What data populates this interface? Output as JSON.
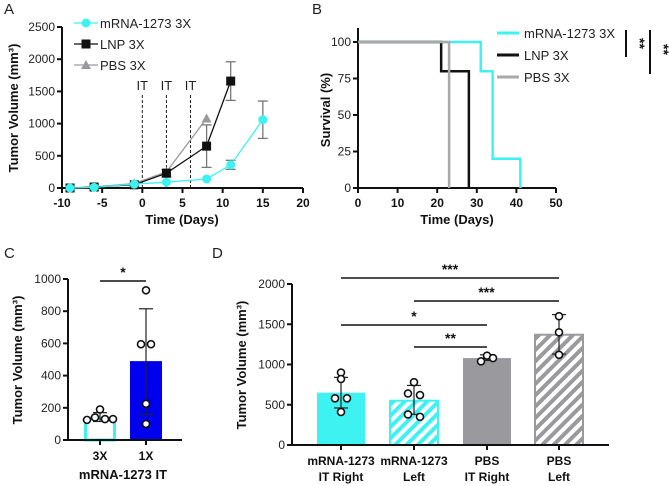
{
  "panels": [
    "A",
    "B",
    "C",
    "D"
  ],
  "colors": {
    "cyan": "#3ef2f2",
    "black": "#111111",
    "gray": "#9a9a9e",
    "blue": "#0000ee"
  },
  "chart_data": [
    {
      "panel": "A",
      "type": "line",
      "xlabel": "Time (Days)",
      "ylabel": "Tumor Volume (mm³)",
      "xlim": [
        -10,
        20
      ],
      "ylim": [
        0,
        2500
      ],
      "xticks": [
        -10,
        -5,
        0,
        5,
        10,
        15,
        20
      ],
      "yticks": [
        0,
        500,
        1000,
        1500,
        2000,
        2500
      ],
      "annotations": [
        {
          "label": "IT",
          "x": 0
        },
        {
          "label": "IT",
          "x": 3
        },
        {
          "label": "IT",
          "x": 6
        }
      ],
      "legend": "top-left",
      "series": [
        {
          "name": "PBS 3X",
          "color": "#9a9a9e",
          "marker": "triangle",
          "x": [
            -9,
            -6,
            -1,
            3,
            8
          ],
          "y": [
            0,
            15,
            70,
            250,
            1080
          ],
          "err": [
            null,
            null,
            null,
            null,
            null
          ]
        },
        {
          "name": "LNP 3X",
          "color": "#111111",
          "marker": "square",
          "x": [
            -9,
            -6,
            -1,
            3,
            8,
            11
          ],
          "y": [
            0,
            15,
            50,
            230,
            650,
            1660
          ],
          "err": [
            null,
            null,
            null,
            [
              170,
              290
            ],
            [
              320,
              980
            ],
            [
              1360,
              1960
            ]
          ]
        },
        {
          "name": "mRNA-1273 3X",
          "color": "#3ef2f2",
          "marker": "circle",
          "x": [
            -9,
            -6,
            -1,
            3,
            8,
            11,
            15
          ],
          "y": [
            0,
            10,
            60,
            90,
            140,
            360,
            1060
          ],
          "err": [
            null,
            null,
            null,
            null,
            null,
            [
              290,
              430
            ],
            [
              770,
              1350
            ]
          ]
        }
      ]
    },
    {
      "panel": "B",
      "type": "line",
      "xlabel": "Time (Days)",
      "ylabel": "Survival (%)",
      "xlim": [
        0,
        50
      ],
      "ylim": [
        0,
        100
      ],
      "xticks": [
        0,
        10,
        20,
        30,
        40,
        50
      ],
      "yticks": [
        0,
        25,
        50,
        75,
        100
      ],
      "legend": "top-right",
      "series": [
        {
          "name": "mRNA-1273 3X",
          "color": "#3ef2f2",
          "x": [
            0,
            31,
            34,
            41
          ],
          "y": [
            100,
            80,
            20,
            0
          ]
        },
        {
          "name": "LNP 3X",
          "color": "#111111",
          "x": [
            0,
            21,
            28
          ],
          "y": [
            100,
            80,
            0
          ]
        },
        {
          "name": "PBS 3X",
          "color": "#a9a9a9",
          "x": [
            0,
            23
          ],
          "y": [
            100,
            0
          ]
        }
      ],
      "significance": [
        {
          "groups": [
            "mRNA-1273 3X",
            "LNP 3X"
          ],
          "label": "**"
        },
        {
          "groups": [
            "mRNA-1273 3X",
            "PBS 3X"
          ],
          "label": "**"
        }
      ]
    },
    {
      "panel": "C",
      "type": "bar",
      "xlabel": "mRNA-1273 IT",
      "ylabel": "Tumor Volume (mm³)",
      "ylim": [
        0,
        1000
      ],
      "yticks": [
        0,
        200,
        400,
        600,
        800,
        1000
      ],
      "categories": [
        "3X",
        "1X"
      ],
      "values": [
        135,
        490
      ],
      "err": [
        [
          115,
          170
        ],
        [
          160,
          815
        ]
      ],
      "points": [
        [
          125,
          140,
          190,
          130,
          130
        ],
        [
          930,
          595,
          595,
          225,
          100
        ]
      ],
      "fills": [
        "outline-cyan",
        "blue"
      ],
      "significance": [
        {
          "groups": [
            "3X",
            "1X"
          ],
          "label": "*"
        }
      ]
    },
    {
      "panel": "D",
      "type": "bar",
      "ylabel": "Tumor Volume (mm³)",
      "ylim": [
        0,
        2000
      ],
      "yticks": [
        0,
        500,
        1000,
        1500,
        2000
      ],
      "categories": [
        [
          "mRNA-1273",
          "IT Right"
        ],
        [
          "mRNA-1273",
          "Left"
        ],
        [
          "PBS",
          "IT Right"
        ],
        [
          "PBS",
          "Left"
        ]
      ],
      "values": [
        650,
        550,
        1080,
        1370
      ],
      "err": [
        [
          460,
          840
        ],
        [
          380,
          740
        ],
        [
          1050,
          1120
        ],
        [
          1130,
          1620
        ]
      ],
      "points": [
        [
          900,
          820,
          580,
          580,
          410
        ],
        [
          780,
          640,
          620,
          380,
          350
        ],
        [
          1040,
          1110,
          1080
        ],
        [
          1600,
          1400,
          1120
        ]
      ],
      "fills": [
        "cyan",
        "cyan-hatched",
        "gray",
        "gray-hatched"
      ],
      "significance": [
        {
          "groups": [
            0,
            3
          ],
          "label": "***"
        },
        {
          "groups": [
            1,
            3
          ],
          "label": "***"
        },
        {
          "groups": [
            0,
            2
          ],
          "label": "*"
        },
        {
          "groups": [
            1,
            2
          ],
          "label": "**"
        }
      ]
    }
  ]
}
